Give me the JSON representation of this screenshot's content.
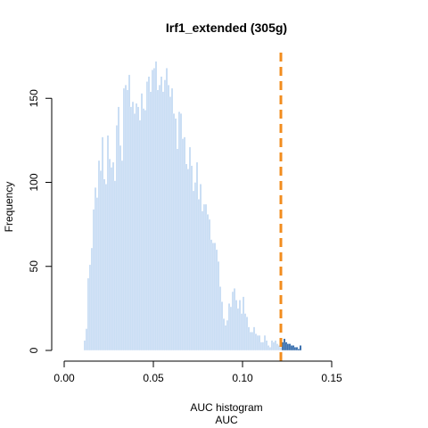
{
  "chart_data": {
    "type": "bar",
    "title": "Irf1_extended (305g)",
    "xlabel": "AUC",
    "subtitle": "AUC histogram",
    "ylabel": "Frequency",
    "xlim": [
      0.0,
      0.185
    ],
    "ylim": [
      0,
      172
    ],
    "x_ticks": [
      0.0,
      0.05,
      0.1,
      0.15
    ],
    "x_tick_labels": [
      "0.00",
      "0.05",
      "0.10",
      "0.15"
    ],
    "y_ticks": [
      0,
      50,
      100,
      150
    ],
    "y_tick_labels": [
      "0",
      "50",
      "100",
      "150"
    ],
    "bin_start": 0.011,
    "bin_width": 0.001,
    "values": [
      6,
      13,
      43,
      51,
      61,
      84,
      97,
      91,
      113,
      107,
      127,
      102,
      99,
      128,
      114,
      109,
      112,
      101,
      134,
      145,
      122,
      113,
      156,
      158,
      155,
      164,
      145,
      148,
      141,
      147,
      145,
      137,
      153,
      144,
      143,
      160,
      163,
      154,
      167,
      168,
      172,
      155,
      158,
      163,
      154,
      161,
      168,
      158,
      151,
      156,
      141,
      138,
      120,
      142,
      141,
      126,
      127,
      111,
      108,
      121,
      110,
      95,
      100,
      112,
      90,
      99,
      83,
      87,
      87,
      81,
      78,
      66,
      64,
      64,
      60,
      53,
      38,
      29,
      19,
      15,
      18,
      28,
      26,
      35,
      37,
      30,
      25,
      30,
      22,
      32,
      22,
      20,
      14,
      11,
      11,
      14,
      10,
      9,
      9,
      5,
      5,
      9,
      6,
      3,
      2,
      6,
      5,
      6,
      4,
      3,
      2,
      5,
      7,
      5,
      4,
      4,
      3,
      3,
      2,
      2,
      1,
      3
    ],
    "threshold": 0.1215,
    "colors": {
      "below_threshold": "#bcd5f2",
      "above_threshold": "#0d4f9c",
      "threshold_line": "#f28c1e"
    },
    "grid": false,
    "legend": "none"
  }
}
